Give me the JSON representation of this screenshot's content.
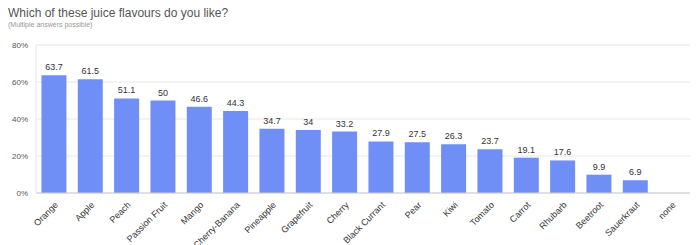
{
  "chart_data": {
    "type": "bar",
    "title": "Which of these juice flavours do you like?",
    "subtitle": "(Multiple answers possible)",
    "categories": [
      "Orange",
      "Apple",
      "Peach",
      "Passion Fruit",
      "Mango",
      "Cherry-Banana",
      "Pineapple",
      "Grapefruit",
      "Cherry",
      "Black Currant",
      "Pear",
      "Kiwi",
      "Tomato",
      "Carrot",
      "Rhubarb",
      "Beetroot",
      "Sauerkraut",
      "none"
    ],
    "values": [
      63.7,
      61.5,
      51.1,
      50,
      46.6,
      44.3,
      34.7,
      34,
      33.2,
      27.9,
      27.5,
      26.3,
      23.7,
      19.1,
      17.6,
      9.9,
      6.9,
      0
    ],
    "color": "#6f8ff7",
    "ylim": [
      0,
      80
    ],
    "yticks": [
      {
        "value": 0,
        "label": "0%"
      },
      {
        "value": 20,
        "label": "20%"
      },
      {
        "value": 40,
        "label": "40%"
      },
      {
        "value": 60,
        "label": "60%"
      },
      {
        "value": 80,
        "label": "80%"
      }
    ],
    "grid": true,
    "data_labels": true
  }
}
